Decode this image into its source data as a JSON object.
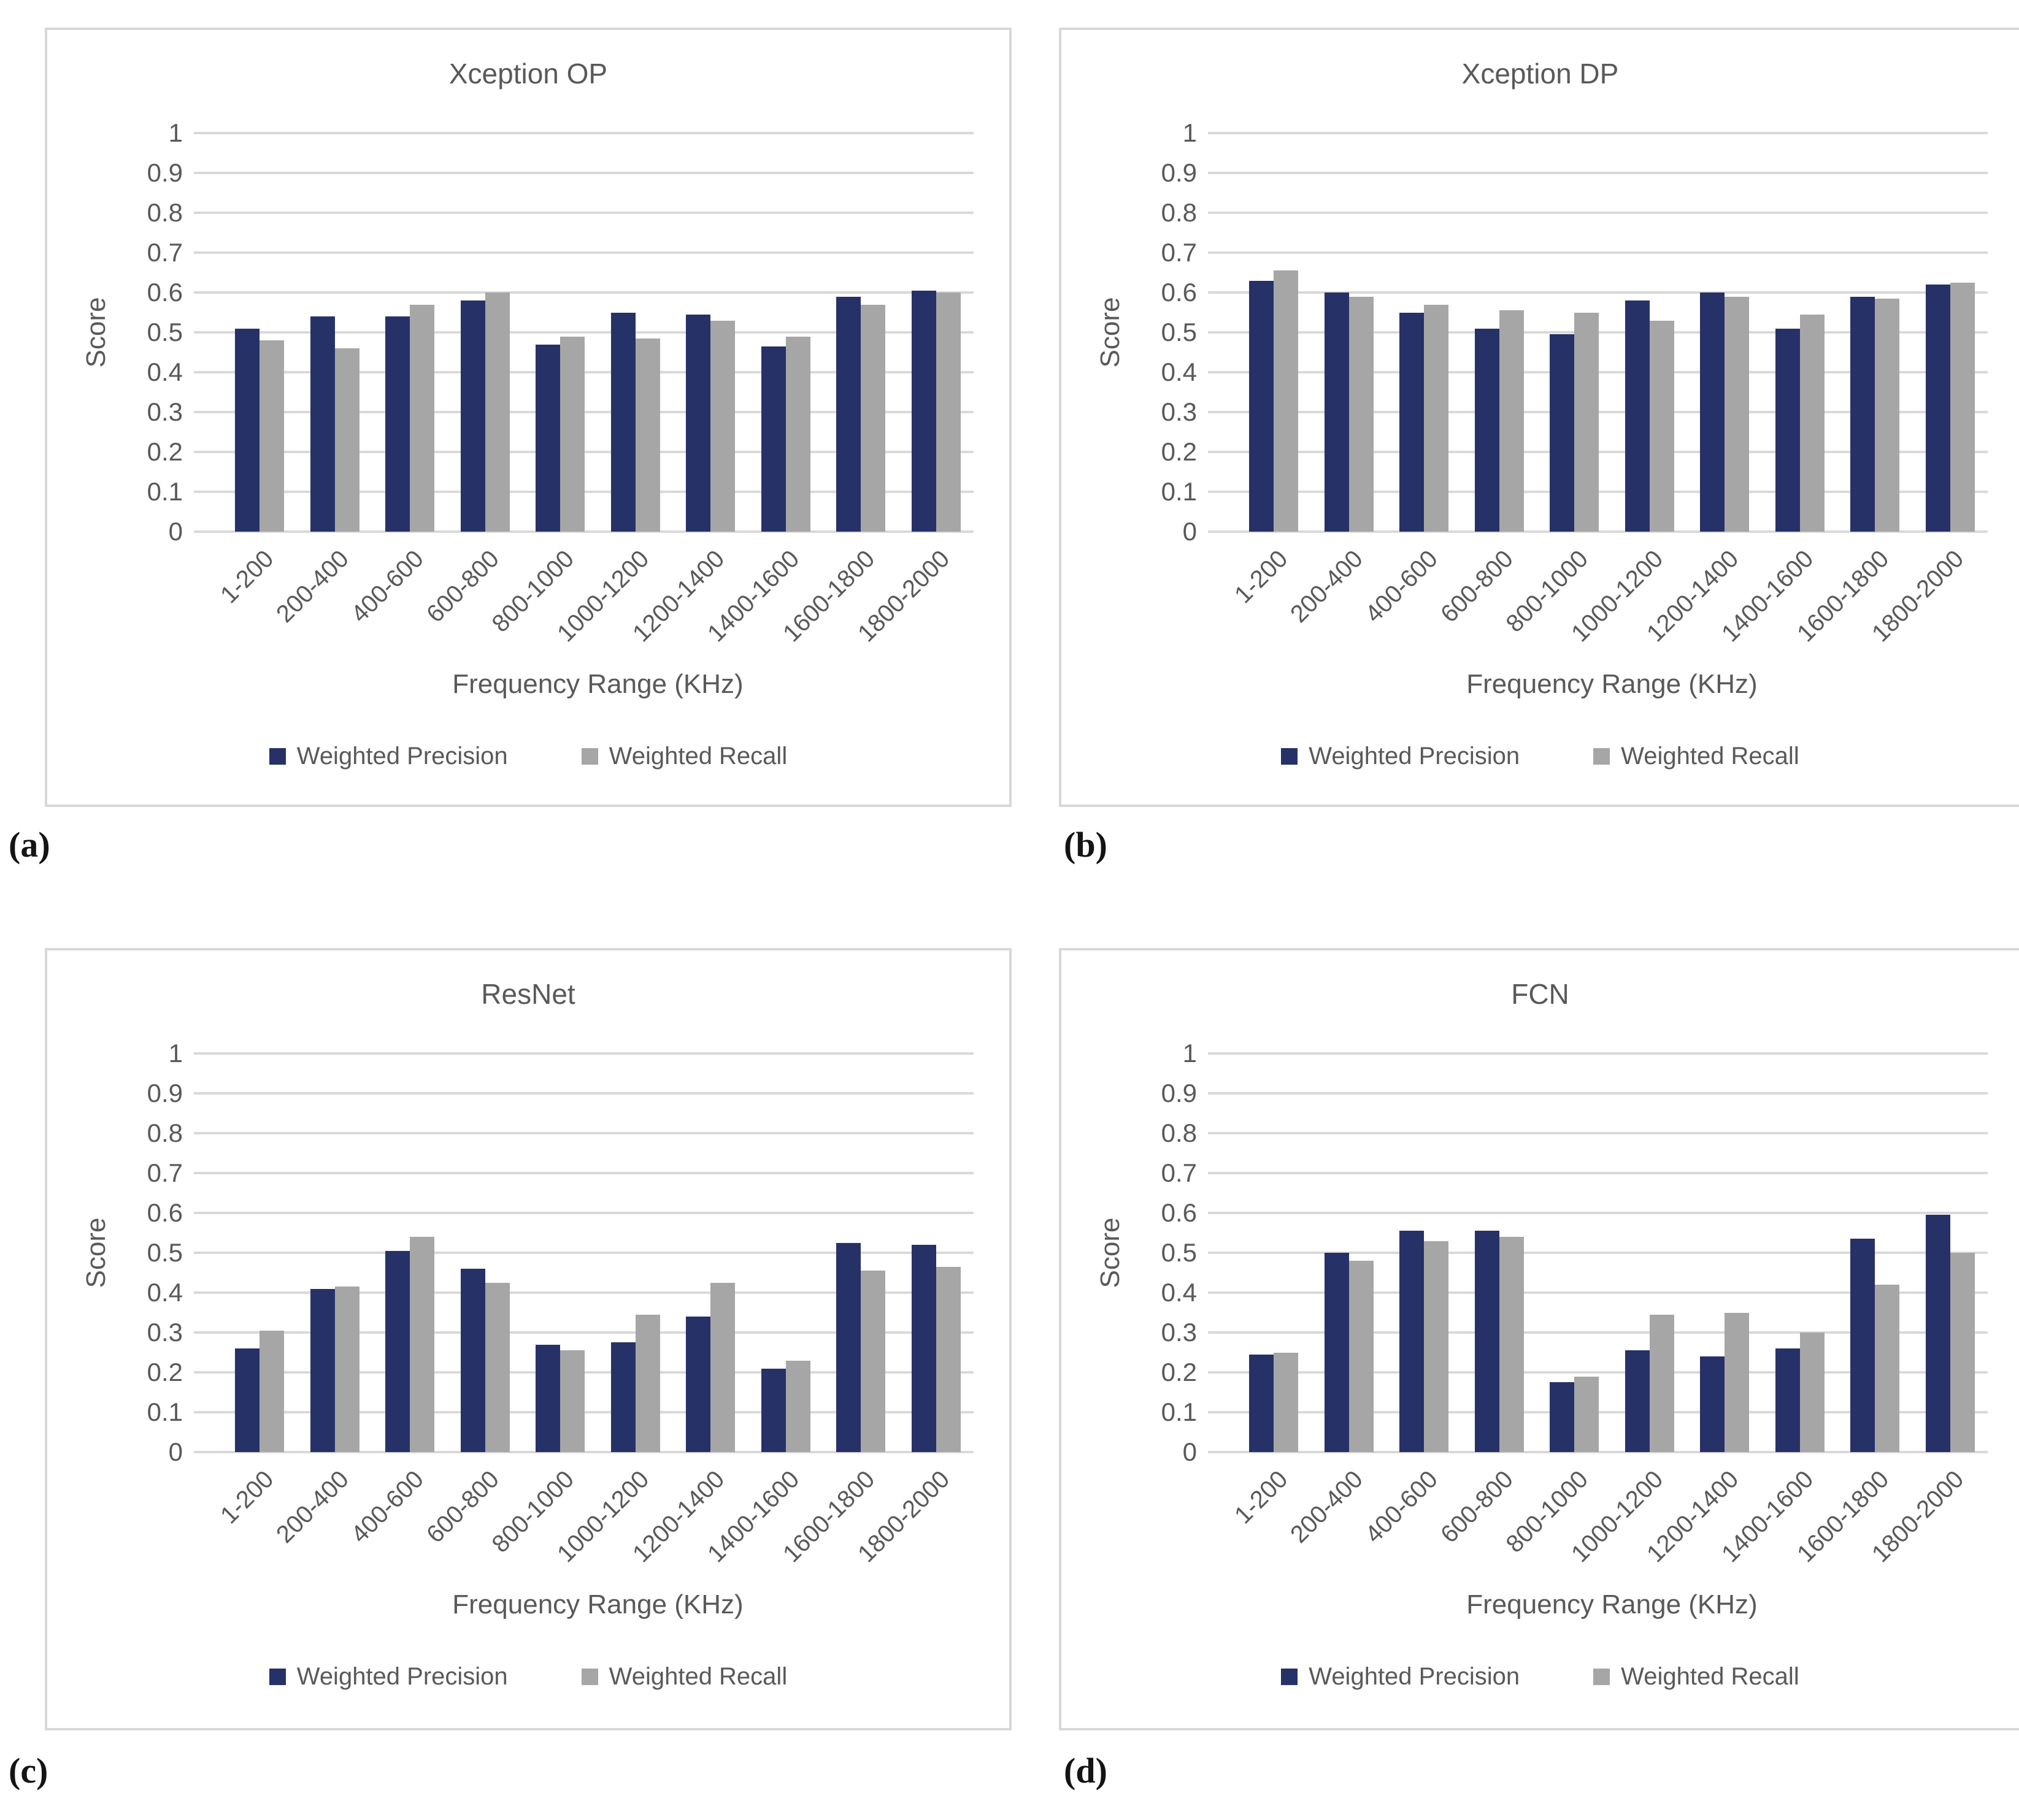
{
  "colors": {
    "precision_bar": "#263168",
    "recall_bar": "#A6A6A6",
    "gridline": "#D9D9D9",
    "axis_text": "#595959",
    "panel_border": "#D8D8D8",
    "caption_text": "#141414"
  },
  "y_axis": {
    "ticks_top_to_bottom": [
      "1",
      "0.9",
      "0.8",
      "0.7",
      "0.6",
      "0.5",
      "0.4",
      "0.3",
      "0.2",
      "0.1",
      "0"
    ]
  },
  "captions": [
    {
      "label": "(a)"
    },
    {
      "label": "(b)"
    },
    {
      "label": "(c)"
    },
    {
      "label": "(d)"
    }
  ],
  "chart_data": [
    {
      "type": "bar",
      "title": "Xception OP",
      "xlabel": "Frequency Range (KHz)",
      "ylabel": "Score",
      "ylim": [
        0,
        1
      ],
      "ytick_step": 0.1,
      "grid": true,
      "legend_position": "bottom",
      "categories": [
        "1-200",
        "200-400",
        "400-600",
        "600-800",
        "800-1000",
        "1000-1200",
        "1200-1400",
        "1400-1600",
        "1600-1800",
        "1800-2000"
      ],
      "series": [
        {
          "name": "Weighted Precision",
          "color": "#263168",
          "values": [
            0.51,
            0.54,
            0.54,
            0.58,
            0.47,
            0.55,
            0.545,
            0.465,
            0.59,
            0.605
          ]
        },
        {
          "name": "Weighted Recall",
          "color": "#A6A6A6",
          "values": [
            0.48,
            0.46,
            0.57,
            0.6,
            0.49,
            0.485,
            0.53,
            0.49,
            0.57,
            0.6
          ]
        }
      ]
    },
    {
      "type": "bar",
      "title": "Xception DP",
      "xlabel": "Frequency Range (KHz)",
      "ylabel": "Score",
      "ylim": [
        0,
        1
      ],
      "ytick_step": 0.1,
      "grid": true,
      "legend_position": "bottom",
      "categories": [
        "1-200",
        "200-400",
        "400-600",
        "600-800",
        "800-1000",
        "1000-1200",
        "1200-1400",
        "1400-1600",
        "1600-1800",
        "1800-2000"
      ],
      "series": [
        {
          "name": "Weighted Precision",
          "color": "#263168",
          "values": [
            0.63,
            0.6,
            0.55,
            0.51,
            0.495,
            0.58,
            0.6,
            0.51,
            0.59,
            0.62
          ]
        },
        {
          "name": "Weighted Recall",
          "color": "#A6A6A6",
          "values": [
            0.655,
            0.59,
            0.57,
            0.555,
            0.55,
            0.53,
            0.59,
            0.545,
            0.585,
            0.625
          ]
        }
      ]
    },
    {
      "type": "bar",
      "title": "ResNet",
      "xlabel": "Frequency Range (KHz)",
      "ylabel": "Score",
      "ylim": [
        0,
        1
      ],
      "ytick_step": 0.1,
      "grid": true,
      "legend_position": "bottom",
      "categories": [
        "1-200",
        "200-400",
        "400-600",
        "600-800",
        "800-1000",
        "1000-1200",
        "1200-1400",
        "1400-1600",
        "1600-1800",
        "1800-2000"
      ],
      "series": [
        {
          "name": "Weighted Precision",
          "color": "#263168",
          "values": [
            0.26,
            0.41,
            0.505,
            0.46,
            0.27,
            0.275,
            0.34,
            0.21,
            0.525,
            0.52
          ]
        },
        {
          "name": "Weighted Recall",
          "color": "#A6A6A6",
          "values": [
            0.305,
            0.415,
            0.54,
            0.425,
            0.255,
            0.345,
            0.425,
            0.23,
            0.455,
            0.465
          ]
        }
      ]
    },
    {
      "type": "bar",
      "title": "FCN",
      "xlabel": "Frequency Range (KHz)",
      "ylabel": "Score",
      "ylim": [
        0,
        1
      ],
      "ytick_step": 0.1,
      "grid": true,
      "legend_position": "bottom",
      "categories": [
        "1-200",
        "200-400",
        "400-600",
        "600-800",
        "800-1000",
        "1000-1200",
        "1200-1400",
        "1400-1600",
        "1600-1800",
        "1800-2000"
      ],
      "series": [
        {
          "name": "Weighted Precision",
          "color": "#263168",
          "values": [
            0.245,
            0.5,
            0.555,
            0.555,
            0.175,
            0.255,
            0.24,
            0.26,
            0.535,
            0.595
          ]
        },
        {
          "name": "Weighted Recall",
          "color": "#A6A6A6",
          "values": [
            0.25,
            0.48,
            0.53,
            0.54,
            0.19,
            0.345,
            0.35,
            0.3,
            0.42,
            0.5
          ]
        }
      ]
    }
  ]
}
